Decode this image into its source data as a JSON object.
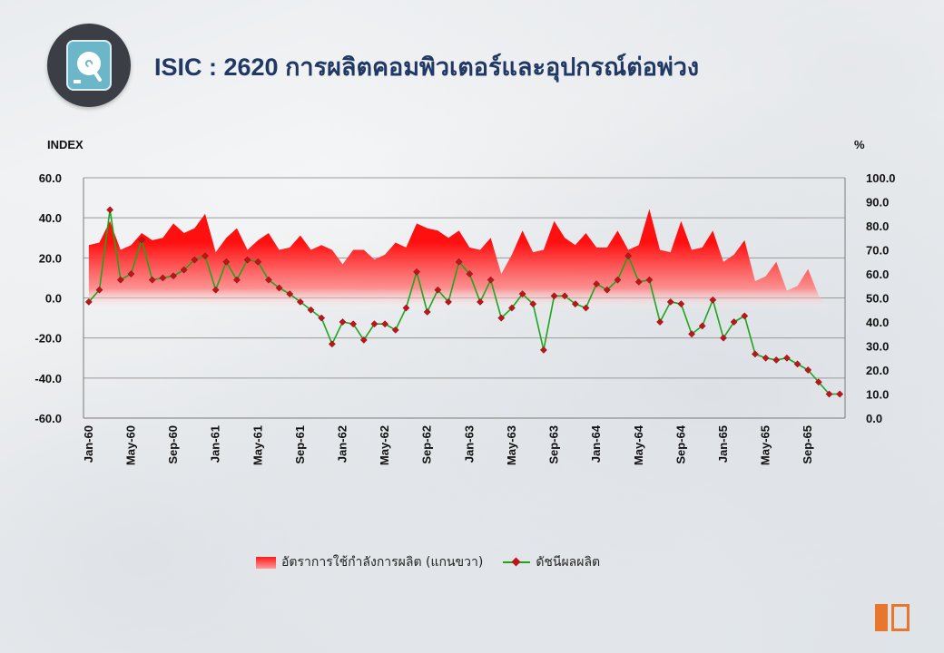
{
  "header": {
    "title": "ISIC : 2620 การผลิตคอมพิวเตอร์และอุปกรณ์ต่อพ่วง"
  },
  "colors": {
    "title": "#1f3864",
    "area_top": "#ff1a1a",
    "line": "#1ea51e",
    "marker": "#c0141a",
    "axis_text": "#111111"
  },
  "chart_data": {
    "type": "line",
    "left_axis_label": "INDEX",
    "right_axis_label": "%",
    "left_ylim": [
      -60,
      60
    ],
    "right_ylim": [
      0,
      100
    ],
    "left_ticks": [
      "60.0",
      "40.0",
      "20.0",
      "0.0",
      "-20.0",
      "-40.0",
      "-60.0"
    ],
    "right_ticks": [
      "100.0",
      "90.0",
      "80.0",
      "70.0",
      "60.0",
      "50.0",
      "40.0",
      "30.0",
      "20.0",
      "10.0",
      "0.0"
    ],
    "x_tick_labels": [
      "Jan-60",
      "May-60",
      "Sep-60",
      "Jan-61",
      "May-61",
      "Sep-61",
      "Jan-62",
      "May-62",
      "Sep-62",
      "Jan-63",
      "May-63",
      "Sep-63",
      "Jan-64",
      "May-64",
      "Sep-64",
      "Jan-65",
      "May-65",
      "Sep-65"
    ],
    "x_tick_every": 4,
    "months": 72,
    "grid": "horizontal",
    "legend_position": "bottom",
    "series": [
      {
        "name": "อัตราการใช้กำลังการผลิต (แกนขวา)",
        "axis": "right",
        "kind": "area",
        "values": [
          72,
          73,
          82,
          70,
          72,
          77,
          74,
          75,
          81,
          77,
          79,
          85,
          69,
          75,
          79,
          70,
          74,
          77,
          70,
          71,
          76,
          70,
          72,
          70,
          64,
          70,
          70,
          66,
          68,
          73,
          71,
          81,
          79,
          78,
          75,
          78,
          71,
          70,
          75,
          60,
          68,
          78,
          69,
          70,
          82,
          75,
          72,
          77,
          71,
          71,
          78,
          70,
          72,
          87,
          70,
          69,
          82,
          70,
          71,
          78,
          65,
          68,
          74,
          57,
          59,
          65,
          53,
          55,
          62,
          51,
          45,
          43
        ]
      },
      {
        "name": "ดัชนีผลผลิต",
        "axis": "left",
        "kind": "line",
        "values": [
          -2.0,
          4.0,
          44.0,
          9.0,
          12.0,
          29.0,
          9.0,
          10.0,
          11.0,
          14.0,
          19.0,
          21.0,
          4.0,
          18.0,
          9.0,
          19.0,
          18.0,
          9.0,
          5.0,
          2.0,
          -2.0,
          -6.0,
          -10.0,
          -23.0,
          -12.0,
          -13.0,
          -21.0,
          -13.0,
          -13.0,
          -16.0,
          -5.0,
          13.0,
          -7.0,
          4.0,
          -2.0,
          18.0,
          12.0,
          -2.0,
          9.0,
          -10.0,
          -5.0,
          2.0,
          -3.0,
          -26.0,
          1.0,
          1.0,
          -3.0,
          -5.0,
          7.0,
          4.0,
          9.0,
          21.0,
          8.0,
          9.0,
          -12.0,
          -2.0,
          -3.0,
          -18.0,
          -14.0,
          -1.0,
          -20.0,
          -12.0,
          -9.0,
          -28.0,
          -30.0,
          -31.0,
          -30.0,
          -33.0,
          -36.0,
          -42.0,
          -48.0,
          -48.0
        ]
      }
    ]
  }
}
